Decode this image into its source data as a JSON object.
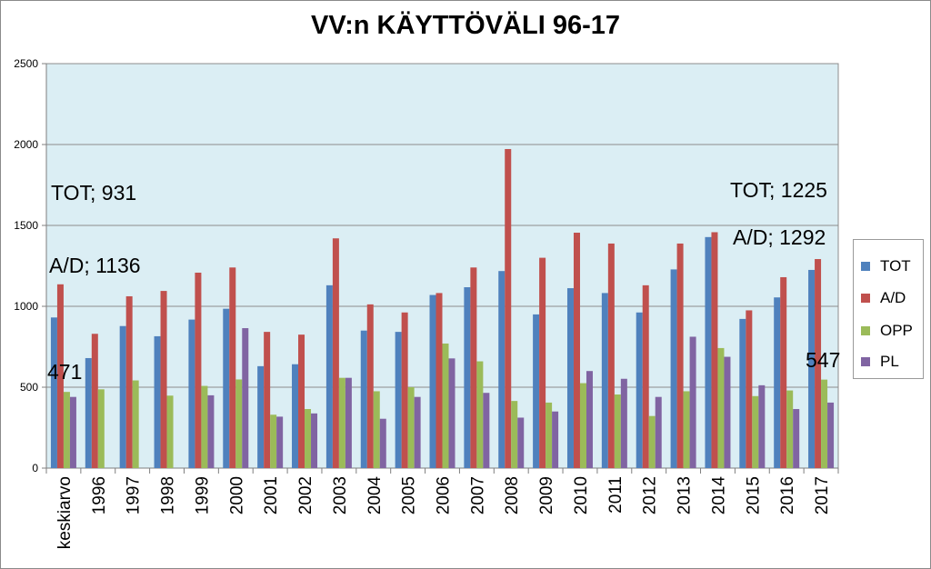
{
  "chart_data": {
    "type": "bar",
    "title": "VV:n KÄYTTÖVÄLI 96-17",
    "xlabel": "",
    "ylabel": "",
    "ylim": [
      0,
      2500
    ],
    "yticks": [
      0,
      500,
      1000,
      1500,
      2000,
      2500
    ],
    "grid": true,
    "legend_position": "right",
    "categories": [
      "keskiarvo",
      "1996",
      "1997",
      "1998",
      "1999",
      "2000",
      "2001",
      "2002",
      "2003",
      "2004",
      "2005",
      "2006",
      "2007",
      "2008",
      "2009",
      "2010",
      "2011",
      "2012",
      "2013",
      "2014",
      "2015",
      "2016",
      "2017"
    ],
    "series": [
      {
        "name": "TOT",
        "color": "#4F81BD",
        "values": [
          931,
          680,
          878,
          815,
          918,
          985,
          630,
          642,
          1130,
          850,
          842,
          1070,
          1118,
          1218,
          950,
          1112,
          1082,
          962,
          1228,
          1428,
          922,
          1055,
          1225
        ]
      },
      {
        "name": "A/D",
        "color": "#C0504D",
        "values": [
          1136,
          830,
          1062,
          1095,
          1208,
          1240,
          842,
          825,
          1420,
          1012,
          962,
          1082,
          1240,
          1972,
          1300,
          1455,
          1388,
          1130,
          1388,
          1458,
          975,
          1180,
          1292
        ]
      },
      {
        "name": "OPP",
        "color": "#9BBB59",
        "values": [
          471,
          487,
          542,
          448,
          508,
          548,
          330,
          365,
          558,
          475,
          500,
          770,
          660,
          415,
          405,
          525,
          455,
          322,
          475,
          742,
          445,
          480,
          547
        ]
      },
      {
        "name": "PL",
        "color": "#8064A2",
        "values": [
          440,
          null,
          null,
          null,
          450,
          865,
          318,
          338,
          558,
          305,
          440,
          678,
          465,
          312,
          350,
          600,
          552,
          440,
          812,
          688,
          512,
          365,
          405
        ]
      }
    ],
    "annotations": [
      {
        "text": "TOT; 931"
      },
      {
        "text": "A/D; 1136"
      },
      {
        "text": "471"
      },
      {
        "text": "TOT; 1225"
      },
      {
        "text": "A/D; 1292"
      },
      {
        "text": "547"
      }
    ]
  },
  "colors": {
    "plot_background": "#DBEEF4",
    "gridline": "#8C8C8C"
  }
}
